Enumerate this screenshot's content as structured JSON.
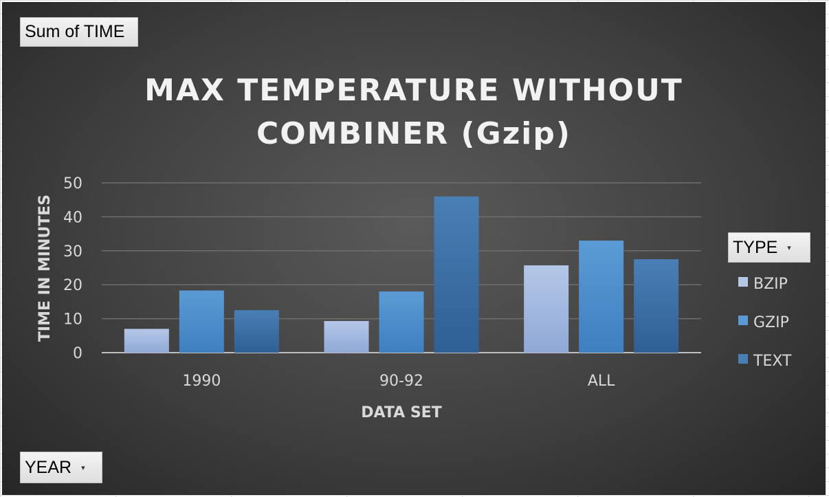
{
  "pivot": {
    "value_field": "Sum of TIME",
    "legend_field": "TYPE",
    "axis_field": "YEAR",
    "dropdown_icon": "chevron-down-icon"
  },
  "chart_data": {
    "type": "bar",
    "title": "MAX TEMPERATURE WITHOUT COMBINER (Gzip)",
    "title_lines": [
      "MAX TEMPERATURE WITHOUT",
      "COMBINER (Gzip)"
    ],
    "xlabel": "DATA SET",
    "ylabel": "TIME IN MINUTES",
    "categories": [
      "1990",
      "90-92",
      "ALL"
    ],
    "ylim": [
      0,
      50
    ],
    "yticks": [
      0,
      10,
      20,
      30,
      40,
      50
    ],
    "grid": true,
    "legend_position": "right",
    "series": [
      {
        "name": "BZIP",
        "values": [
          7,
          9.3,
          25.7
        ],
        "color": "#b4c7e7",
        "color_dark": "#8fa9d6"
      },
      {
        "name": "GZIP",
        "values": [
          18.3,
          18,
          33
        ],
        "color": "#5b9bd5",
        "color_dark": "#3e7fc0"
      },
      {
        "name": "TEXT",
        "values": [
          12.5,
          46,
          27.5
        ],
        "color": "#4a7fb5",
        "color_dark": "#2f5f94"
      }
    ]
  }
}
